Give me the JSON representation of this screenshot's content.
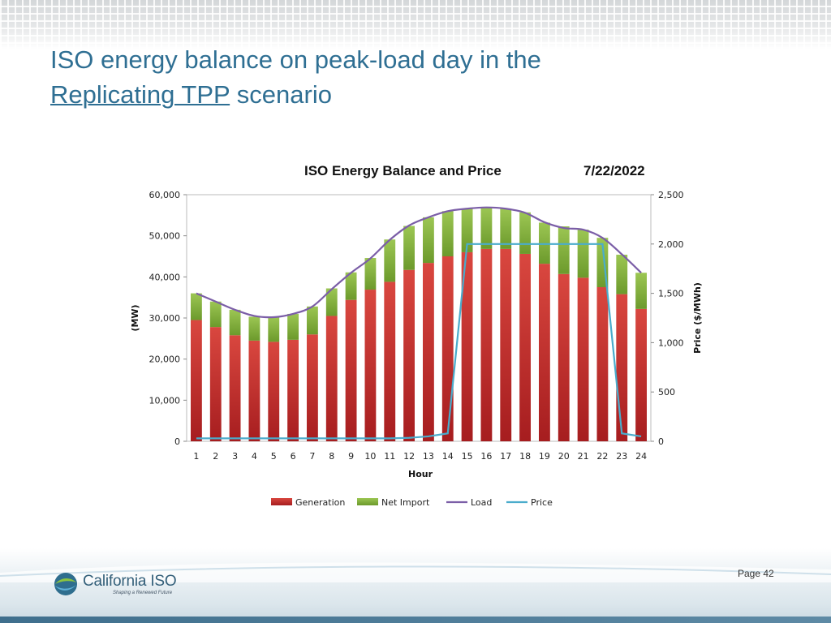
{
  "slide": {
    "title_line1": "ISO energy balance on peak-load day in the",
    "title_link": "Replicating TPP",
    "title_rest": " scenario",
    "page_label": "Page 42"
  },
  "logo": {
    "name": "California ISO",
    "tagline": "Shaping a Renewed Future"
  },
  "chart_data": {
    "type": "bar",
    "title": "ISO Energy Balance and Price",
    "date": "7/22/2022",
    "xlabel": "Hour",
    "ylabel": "(MW)",
    "y2label": "Price ($/MWh)",
    "categories": [
      "1",
      "2",
      "3",
      "4",
      "5",
      "6",
      "7",
      "8",
      "9",
      "10",
      "11",
      "12",
      "13",
      "14",
      "15",
      "16",
      "17",
      "18",
      "19",
      "20",
      "21",
      "22",
      "23",
      "24"
    ],
    "ylim": [
      0,
      60000
    ],
    "y2lim": [
      0,
      2500
    ],
    "yticks": [
      "0",
      "10,000",
      "20,000",
      "30,000",
      "40,000",
      "50,000",
      "60,000"
    ],
    "y2ticks": [
      "0",
      "500",
      "1,000",
      "1,500",
      "2,000",
      "2,500"
    ],
    "stacked": true,
    "series": [
      {
        "name": "Generation",
        "kind": "bar",
        "color": "#c8302e",
        "values": [
          29500,
          27800,
          25800,
          24500,
          24200,
          24700,
          26000,
          30500,
          34400,
          36900,
          38800,
          41700,
          43400,
          45000,
          46000,
          46800,
          46800,
          45600,
          43200,
          40700,
          39800,
          37500,
          35800,
          32200
        ]
      },
      {
        "name": "Net Import",
        "kind": "bar",
        "color": "#86b33a",
        "values": [
          6500,
          6200,
          6200,
          5800,
          6000,
          6300,
          6800,
          6700,
          6700,
          7700,
          10300,
          10700,
          11100,
          11000,
          10600,
          10100,
          9800,
          10100,
          10000,
          11600,
          11700,
          12000,
          9600,
          8800
        ]
      },
      {
        "name": "Load",
        "kind": "line",
        "color": "#7b5ea7",
        "axis": "left",
        "values": [
          36000,
          34000,
          32000,
          30500,
          30200,
          31000,
          32800,
          37000,
          41000,
          44500,
          49000,
          52500,
          54500,
          56000,
          56600,
          56900,
          56600,
          55600,
          53300,
          51900,
          51500,
          49500,
          45500,
          41000
        ]
      },
      {
        "name": "Price",
        "kind": "line",
        "color": "#4aaccc",
        "axis": "right",
        "values": [
          30,
          30,
          30,
          30,
          30,
          30,
          30,
          30,
          30,
          30,
          30,
          35,
          50,
          80,
          2000,
          2000,
          2000,
          2000,
          2000,
          2000,
          2000,
          2000,
          80,
          50
        ]
      }
    ],
    "legend_position": "bottom"
  }
}
